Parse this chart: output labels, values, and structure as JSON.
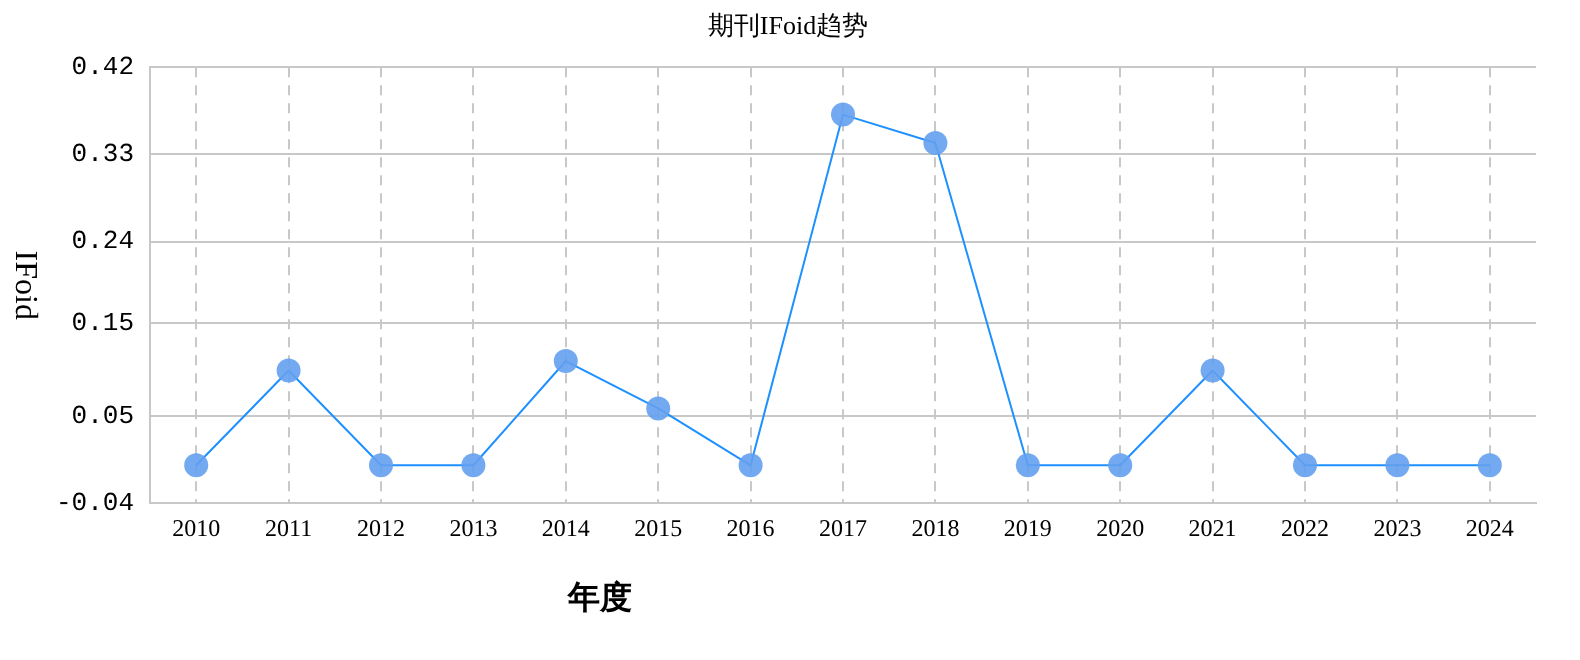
{
  "chart_data": {
    "type": "line",
    "title": "期刊IFoid趋势",
    "xlabel": "年度",
    "ylabel": "IFoid",
    "categories": [
      "2010",
      "2011",
      "2012",
      "2013",
      "2014",
      "2015",
      "2016",
      "2017",
      "2018",
      "2019",
      "2020",
      "2021",
      "2022",
      "2023",
      "2024"
    ],
    "series": [
      {
        "color": "#1e90ff",
        "values": [
          0,
          0.1,
          0,
          0,
          0.11,
          0.06,
          0,
          0.37,
          0.34,
          0,
          0,
          0.1,
          0,
          0,
          0
        ]
      }
    ],
    "ylim": [
      -0.04,
      0.42
    ],
    "yticks": [
      -0.04,
      {
        "value": 0.052,
        "label": "0.05"
      },
      0.15,
      {
        "value": 0.236,
        "label": "0.24"
      },
      {
        "value": 0.328,
        "label": "0.33"
      },
      0.42
    ],
    "grid": true,
    "marker": "circle",
    "line_style": "solid",
    "legend": false
  }
}
